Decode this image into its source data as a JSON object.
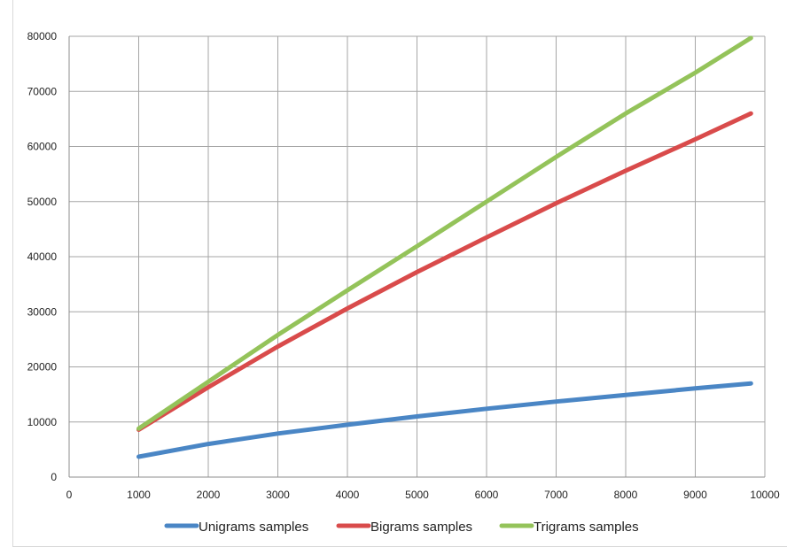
{
  "chart_data": {
    "type": "line",
    "title": "",
    "xlabel": "",
    "ylabel": "",
    "xlim": [
      0,
      10000
    ],
    "ylim": [
      0,
      80000
    ],
    "x_ticks": [
      0,
      1000,
      2000,
      3000,
      4000,
      5000,
      6000,
      7000,
      8000,
      9000,
      10000
    ],
    "y_ticks": [
      0,
      10000,
      20000,
      30000,
      40000,
      50000,
      60000,
      70000,
      80000
    ],
    "grid": true,
    "legend_position": "bottom",
    "x": [
      1000,
      2000,
      3000,
      4000,
      5000,
      6000,
      7000,
      8000,
      9000,
      9800
    ],
    "series": [
      {
        "name": "Unigrams samples",
        "color": "#4a86c5",
        "values": [
          3700,
          6000,
          7900,
          9500,
          11000,
          12400,
          13700,
          14900,
          16100,
          17000
        ]
      },
      {
        "name": "Bigrams samples",
        "color": "#d94b4b",
        "values": [
          8600,
          16300,
          23700,
          30600,
          37200,
          43500,
          49700,
          55600,
          61300,
          66000
        ]
      },
      {
        "name": "Trigrams samples",
        "color": "#94c35a",
        "values": [
          8800,
          17300,
          25800,
          33900,
          41900,
          50000,
          58100,
          66000,
          73400,
          79700
        ]
      }
    ]
  }
}
